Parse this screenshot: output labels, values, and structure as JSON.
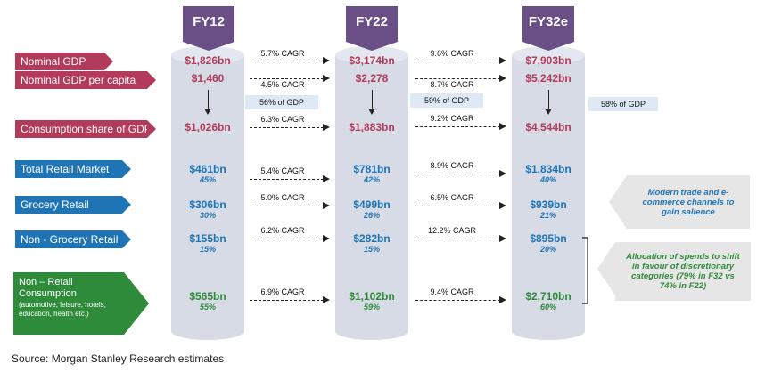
{
  "columns": [
    {
      "label": "FY12"
    },
    {
      "label": "FY22"
    },
    {
      "label": "FY32e"
    }
  ],
  "rows": {
    "nominal_gdp": {
      "label": "Nominal GDP",
      "values": [
        "$1,826bn",
        "$3,174bn",
        "$7,903bn"
      ],
      "cagr": [
        "5.7% CAGR",
        "9.6% CAGR"
      ]
    },
    "gdp_per_capita": {
      "label": "Nominal GDP per capita",
      "values": [
        "$1,460",
        "$2,278",
        "$5,242bn"
      ],
      "cagr": [
        "4.5% CAGR",
        "8.7% CAGR"
      ]
    },
    "consumption": {
      "label": "Consumption share of GDP",
      "values": [
        "$1,026bn",
        "$1,883bn",
        "$4,544bn"
      ],
      "cagr": [
        "6.3% CAGR",
        "9.2% CAGR"
      ],
      "share": [
        "56% of GDP",
        "59% of GDP",
        "58% of GDP"
      ]
    },
    "total_retail": {
      "label": "Total Retail Market",
      "values": [
        "$461bn",
        "$781bn",
        "$1,834bn"
      ],
      "pcts": [
        "45%",
        "42%",
        "40%"
      ],
      "cagr": [
        "5.4% CAGR",
        "8.9% CAGR"
      ]
    },
    "grocery": {
      "label": "Grocery Retail",
      "values": [
        "$306bn",
        "$499bn",
        "$939bn"
      ],
      "pcts": [
        "30%",
        "26%",
        "21%"
      ],
      "cagr": [
        "5.0% CAGR",
        "6.5% CAGR"
      ]
    },
    "non_grocery": {
      "label": "Non - Grocery Retail",
      "values": [
        "$155bn",
        "$282bn",
        "$895bn"
      ],
      "pcts": [
        "15%",
        "15%",
        "20%"
      ],
      "cagr": [
        "6.2% CAGR",
        "12.2% CAGR"
      ]
    },
    "non_retail": {
      "label": "Non – Retail Consumption",
      "sublabel": "(automotive, leisure, hotels, education, health etc.)",
      "values": [
        "$565bn",
        "$1,102bn",
        "$2,710bn"
      ],
      "pcts": [
        "55%",
        "59%",
        "60%"
      ],
      "cagr": [
        "6.9% CAGR",
        "9.4% CAGR"
      ]
    }
  },
  "callouts": {
    "modern_trade": "Modern trade and e-commerce channels to gain salience",
    "allocation": "Allocation of spends to shift in favour of discretionary categories (79% in F32 vs 74% in F22)"
  },
  "source": "Source: Morgan Stanley Research estimates",
  "colors": {
    "red": "#b23b5c",
    "blue": "#1f74b6",
    "green": "#2e8b3a",
    "purple": "#6a4f86"
  }
}
